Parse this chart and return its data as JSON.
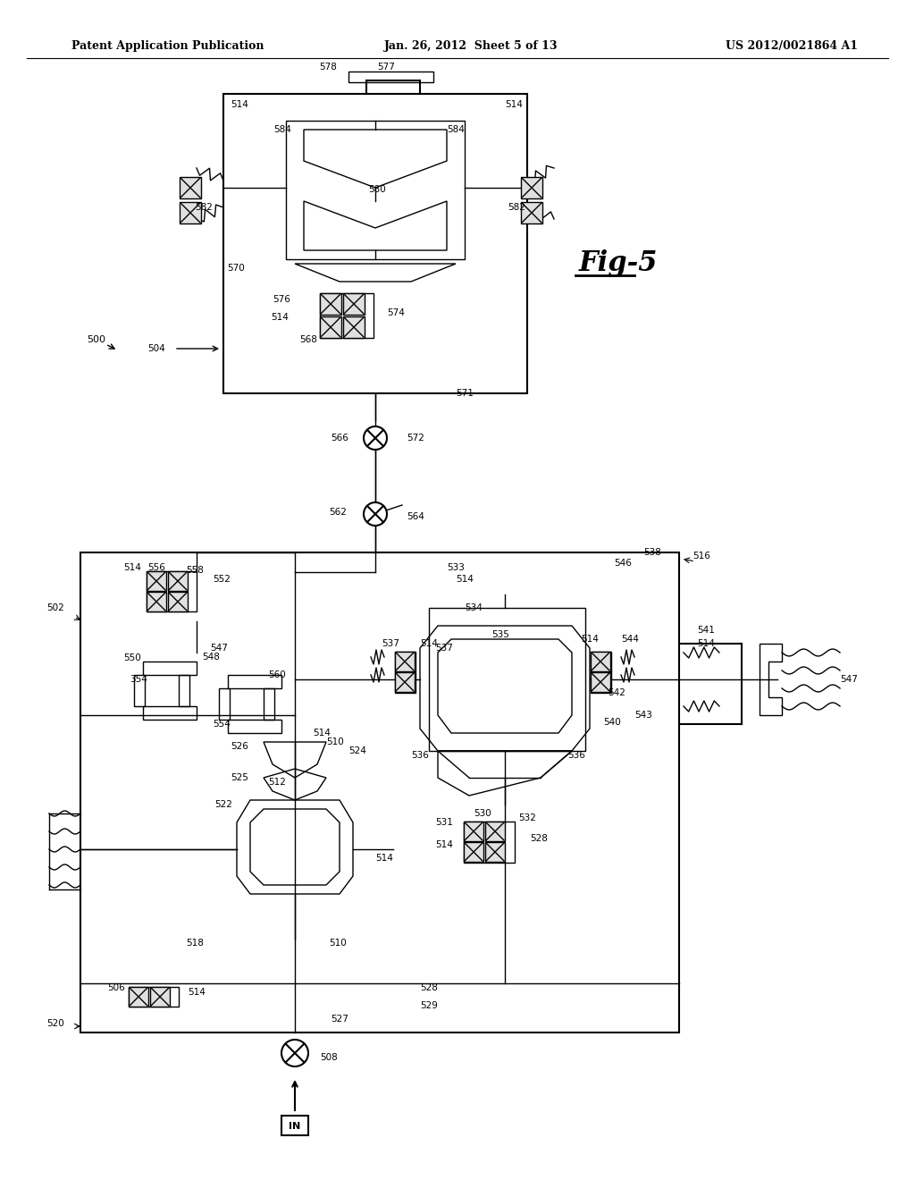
{
  "title_left": "Patent Application Publication",
  "title_mid": "Jan. 26, 2012  Sheet 5 of 13",
  "title_right": "US 2012/0021864 A1",
  "fig_label": "Fig-5",
  "bg_color": "#ffffff"
}
